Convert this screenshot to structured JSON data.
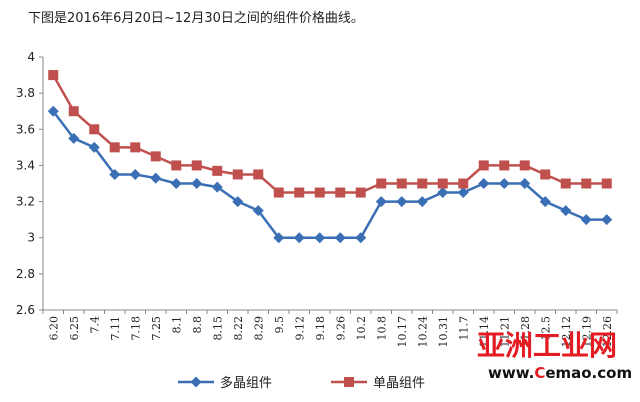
{
  "caption": "下图是2016年6月20日~12月30日之间的组件价格曲线。",
  "watermark": {
    "name": "亚洲工业网",
    "url_prefix": "www.",
    "url_brand": "C",
    "url_rest": "emao.com"
  },
  "chart_data": {
    "type": "line",
    "title": "",
    "xlabel": "",
    "ylabel": "",
    "ylim": [
      2.6,
      4.0
    ],
    "yticks": [
      2.6,
      2.8,
      3.0,
      3.2,
      3.4,
      3.6,
      3.8,
      4.0
    ],
    "ytick_labels": [
      "2.6",
      "2.8",
      "3",
      "3.2",
      "3.4",
      "3.6",
      "3.8",
      "4"
    ],
    "grid": false,
    "legend": "bottom",
    "categories": [
      "6.20",
      "6.25",
      "7.4",
      "7.11",
      "7.18",
      "7.25",
      "8.1",
      "8.8",
      "8.15",
      "8.22",
      "8.29",
      "9.5",
      "9.12",
      "9.18",
      "9.26",
      "10.2",
      "10.8",
      "10.17",
      "10.24",
      "10.31",
      "11.7",
      "11.14",
      "11.21",
      "11.28",
      "12.5",
      "12.12",
      "12.19",
      "12.26"
    ],
    "series": [
      {
        "name": "多晶组件",
        "color": "#3a6fb5",
        "marker": "diamond",
        "values": [
          3.7,
          3.55,
          3.5,
          3.35,
          3.35,
          3.33,
          3.3,
          3.3,
          3.28,
          3.2,
          3.15,
          3.0,
          3.0,
          3.0,
          3.0,
          3.0,
          3.2,
          3.2,
          3.2,
          3.25,
          3.25,
          3.3,
          3.3,
          3.3,
          3.2,
          3.15,
          3.1,
          3.1
        ]
      },
      {
        "name": "单晶组件",
        "color": "#c0504d",
        "marker": "square",
        "values": [
          3.9,
          3.7,
          3.6,
          3.5,
          3.5,
          3.45,
          3.4,
          3.4,
          3.37,
          3.35,
          3.35,
          3.25,
          3.25,
          3.25,
          3.25,
          3.25,
          3.3,
          3.3,
          3.3,
          3.3,
          3.3,
          3.4,
          3.4,
          3.4,
          3.35,
          3.3,
          3.3,
          3.3
        ]
      }
    ]
  }
}
